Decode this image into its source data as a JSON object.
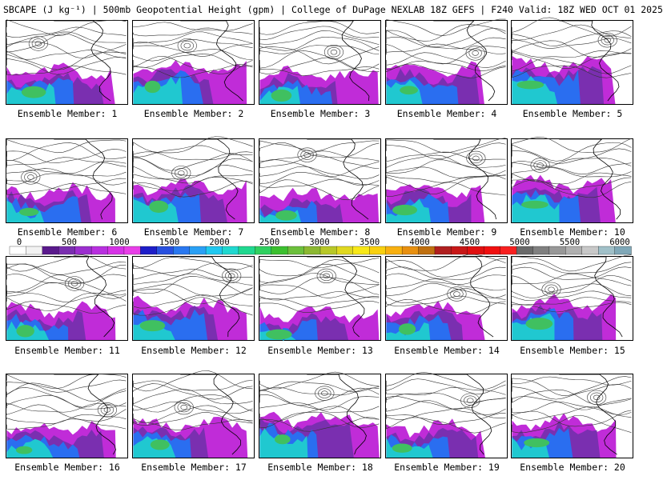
{
  "header": {
    "title": "SBCAPE (J kg⁻¹) | 500mb Geopotential Height (gpm) | College of DuPage NEXLAB 18Z GEFS | F240 Valid: 18Z WED OCT 01 2025"
  },
  "panels": [
    {
      "label": "Ensemble Member: 1"
    },
    {
      "label": "Ensemble Member: 2"
    },
    {
      "label": "Ensemble Member: 3"
    },
    {
      "label": "Ensemble Member: 4"
    },
    {
      "label": "Ensemble Member: 5"
    },
    {
      "label": "Ensemble Member: 6"
    },
    {
      "label": "Ensemble Member: 7"
    },
    {
      "label": "Ensemble Member: 8"
    },
    {
      "label": "Ensemble Member: 9"
    },
    {
      "label": "Ensemble Member: 10"
    },
    {
      "label": "Ensemble Member: 11"
    },
    {
      "label": "Ensemble Member: 12"
    },
    {
      "label": "Ensemble Member: 13"
    },
    {
      "label": "Ensemble Member: 14"
    },
    {
      "label": "Ensemble Member: 15"
    },
    {
      "label": "Ensemble Member: 16"
    },
    {
      "label": "Ensemble Member: 17"
    },
    {
      "label": "Ensemble Member: 18"
    },
    {
      "label": "Ensemble Member: 19"
    },
    {
      "label": "Ensemble Member: 20"
    }
  ],
  "colorbar": {
    "ticks": [
      "0",
      "500",
      "1000",
      "1500",
      "2000",
      "2500",
      "3000",
      "3500",
      "4000",
      "4500",
      "5000",
      "5500",
      "6000"
    ],
    "colors": [
      "#ffffff",
      "#f2f2f2",
      "#5a1a8c",
      "#7a2fb0",
      "#9b2fcf",
      "#b830df",
      "#d633e6",
      "#e83fe8",
      "#1e1ec8",
      "#2850e0",
      "#2a78f0",
      "#2aa0f5",
      "#20c8f0",
      "#20d8d0",
      "#20d890",
      "#30d060",
      "#3cc030",
      "#6cc03c",
      "#8cb832",
      "#b8c828",
      "#e0d820",
      "#f8e818",
      "#f8d010",
      "#f8b010",
      "#e89010",
      "#c07010",
      "#b02020",
      "#c81818",
      "#e01010",
      "#f01010",
      "#f82020",
      "#6a6a6a",
      "#808080",
      "#989898",
      "#b0b0b0",
      "#c8c8c8",
      "#a0c0c8",
      "#80a8b8"
    ]
  }
}
